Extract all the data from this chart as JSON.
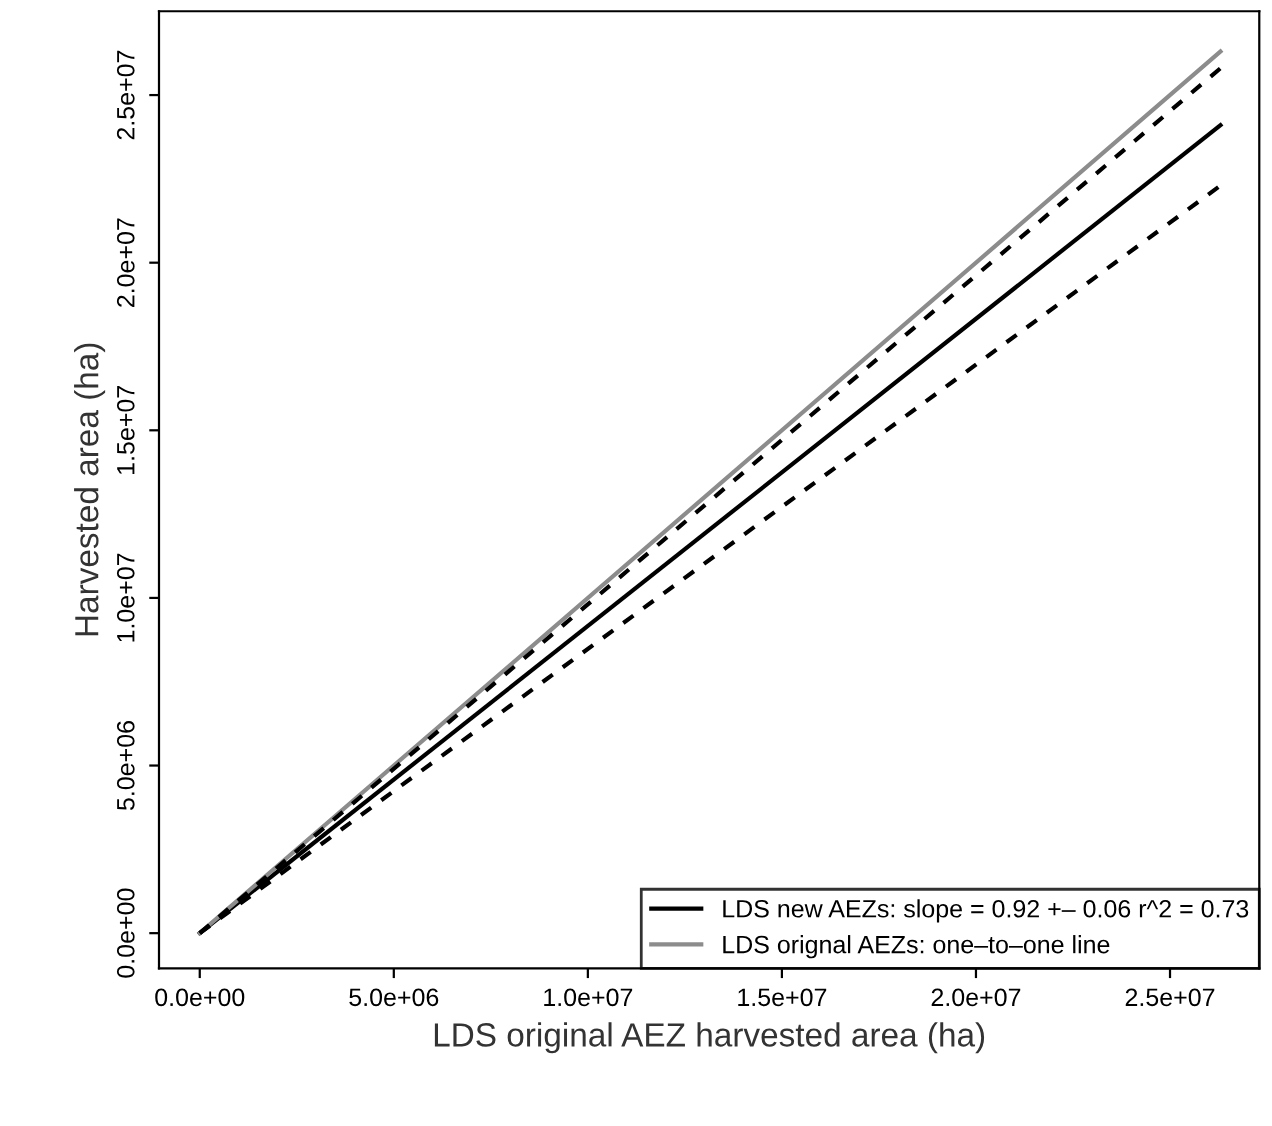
{
  "chart_data": {
    "type": "line",
    "xlabel": "LDS original AEZ harvested area (ha)",
    "ylabel": "Harvested area (ha)",
    "x": [
      0,
      26300000
    ],
    "series": [
      {
        "name": "LDS new AEZs: slope = 0.92 +– 0.06 r^2 = 0.73",
        "color": "#000000",
        "values": [
          0,
          24100000
        ],
        "line_style": "solid"
      },
      {
        "name": "LDS orignal AEZs: one–to–one line",
        "color": "#8c8c8c",
        "values": [
          0,
          26300000
        ],
        "line_style": "solid"
      },
      {
        "color": "#000000",
        "values": [
          0,
          25800000
        ],
        "line_style": "dashed"
      },
      {
        "color": "#000000",
        "values": [
          0,
          22300000
        ],
        "line_style": "dashed"
      }
    ],
    "xlim": [
      -1050000,
      27300000
    ],
    "ylim": [
      -1050000,
      27500000
    ],
    "xticks": [
      {
        "value": 0,
        "label": "0.0e+00"
      },
      {
        "value": 5000000,
        "label": "5.0e+06"
      },
      {
        "value": 10000000,
        "label": "1.0e+07"
      },
      {
        "value": 15000000,
        "label": "1.5e+07"
      },
      {
        "value": 20000000,
        "label": "2.0e+07"
      },
      {
        "value": 25000000,
        "label": "2.5e+07"
      }
    ],
    "yticks": [
      {
        "value": 0,
        "label": "0.0e+00"
      },
      {
        "value": 5000000,
        "label": "5.0e+06"
      },
      {
        "value": 10000000,
        "label": "1.0e+07"
      },
      {
        "value": 15000000,
        "label": "1.5e+07"
      },
      {
        "value": 20000000,
        "label": "2.0e+07"
      },
      {
        "value": 25000000,
        "label": "2.5e+07"
      }
    ],
    "grid": false,
    "legend": "bottom right",
    "marker": "none"
  }
}
